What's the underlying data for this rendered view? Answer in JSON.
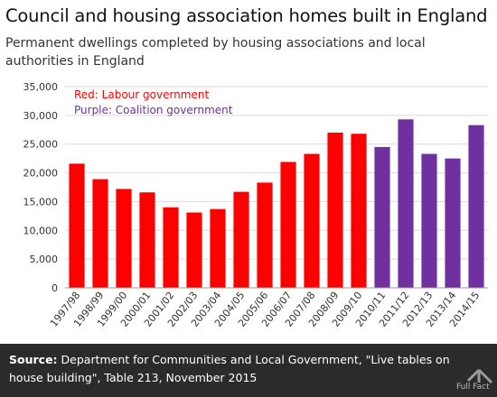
{
  "title": "Council and housing association homes built in England",
  "subtitle": "Permanent dwellings completed by housing associations and local authorities in England",
  "footer": {
    "source_label": "Source:",
    "source_text": "Department for Communities and Local Government, \"Live tables on house building\", Table 213, November 2015"
  },
  "logo": {
    "text": "Full Fact"
  },
  "colors": {
    "labour": "#ff0000",
    "coalition": "#7030a0",
    "grid": "#d9d9d9",
    "footer_bg": "#2b2b2b"
  },
  "chart_data": {
    "type": "bar",
    "title": "",
    "xlabel": "",
    "ylabel": "",
    "ylim": [
      0,
      35000
    ],
    "yticks": [
      "0",
      "5,000",
      "10,000",
      "15,000",
      "20,000",
      "25,000",
      "30,000",
      "35,000"
    ],
    "grid": true,
    "categories": [
      "1997/98",
      "1998/99",
      "1999/00",
      "2000/01",
      "2001/02",
      "2002/03",
      "2003/04",
      "2004/05",
      "2005/06",
      "2006/07",
      "2007/08",
      "2008/09",
      "2009/10",
      "2010/11",
      "2011/12",
      "2012/13",
      "2013/14",
      "2014/15"
    ],
    "values": [
      21600,
      18900,
      17200,
      16600,
      14000,
      13100,
      13700,
      16700,
      18300,
      21900,
      23300,
      27000,
      26800,
      24500,
      29300,
      23300,
      22500,
      28300
    ],
    "government": [
      "labour",
      "labour",
      "labour",
      "labour",
      "labour",
      "labour",
      "labour",
      "labour",
      "labour",
      "labour",
      "labour",
      "labour",
      "labour",
      "coalition",
      "coalition",
      "coalition",
      "coalition",
      "coalition"
    ],
    "annotations": [
      {
        "text": "Red: Labour government",
        "color": "#ff0000"
      },
      {
        "text": "Purple: Coalition government",
        "color": "#7030a0"
      }
    ]
  }
}
